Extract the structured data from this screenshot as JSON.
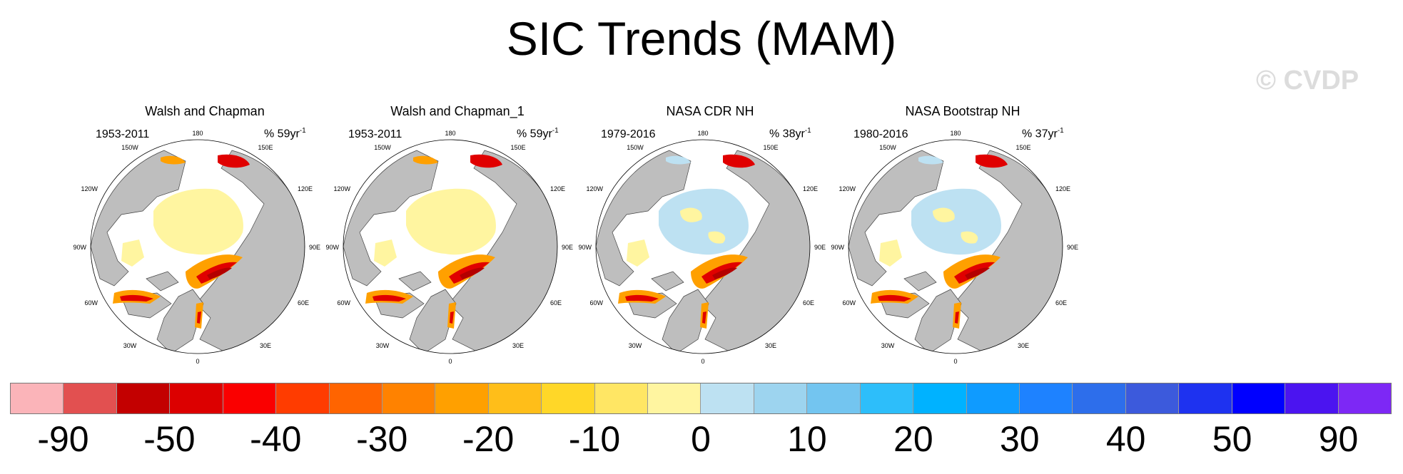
{
  "title": "SIC Trends (MAM)",
  "watermark": "© CVDP",
  "panels": [
    {
      "title": "Walsh and Chapman",
      "period": "1953-2011",
      "pct": "% 59yr",
      "pct_exp": "-1"
    },
    {
      "title": "Walsh and Chapman_1",
      "period": "1953-2011",
      "pct": "% 59yr",
      "pct_exp": "-1"
    },
    {
      "title": "NASA CDR NH",
      "period": "1979-2016",
      "pct": "% 38yr",
      "pct_exp": "-1"
    },
    {
      "title": "NASA Bootstrap NH",
      "period": "1980-2016",
      "pct": "% 37yr",
      "pct_exp": "-1"
    }
  ],
  "map_labels": {
    "top": "180",
    "bottom": "0",
    "left": "90W",
    "right": "90E",
    "upper_left": "150W",
    "upper_right": "150E",
    "left_upper": "120W",
    "right_upper": "120E",
    "left_lower": "60W",
    "right_lower": "60E",
    "lower_left": "30W",
    "lower_right": "30E"
  },
  "colorbar": {
    "colors": [
      "#fbb4b9",
      "#e25050",
      "#c30000",
      "#dc0000",
      "#fa0000",
      "#ff3c00",
      "#ff6400",
      "#ff8200",
      "#ffa000",
      "#ffbe19",
      "#ffd728",
      "#ffe664",
      "#fff5a0",
      "#bde1f2",
      "#9dd4ef",
      "#73c5f0",
      "#2dbefa",
      "#00b2ff",
      "#0f9bff",
      "#1e82ff",
      "#2d6eeb",
      "#3c5adc",
      "#1e32f0",
      "#0000ff",
      "#4b14f0",
      "#7d28f5"
    ],
    "labels": [
      "-90",
      "-50",
      "-40",
      "-30",
      "-20",
      "-10",
      "0",
      "10",
      "20",
      "30",
      "40",
      "50",
      "90"
    ]
  },
  "map_colors": {
    "land": "#bebebe",
    "ice_yellow": "#fff5a0",
    "ice_blue": "#bde1f2",
    "orange": "#ffa000",
    "red": "#e00000",
    "dark_red": "#b40000"
  }
}
